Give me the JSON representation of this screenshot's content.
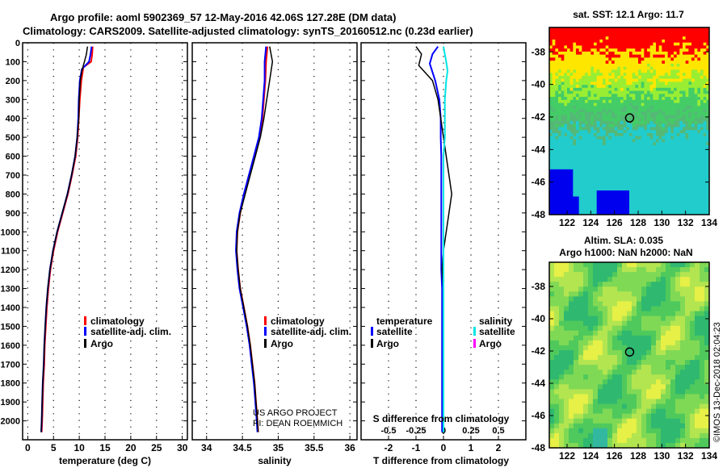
{
  "title_line1": "Argo profile: aoml 5902369_57 12-May-2016 42.06S 127.28E (DM data)",
  "title_line2": "Climatology: CARS2009. Satellite-adjusted climatology: synTS_20160512.nc (0.23d earlier)",
  "colors": {
    "climatology": "#ff0000",
    "satellite": "#0000ff",
    "argo": "#000000",
    "satellite_salinity": "#00e5e5",
    "argo_salinity": "#ff00ff"
  },
  "legend": {
    "climatology": "climatology",
    "satellite_adj": "satellite-adj. clim.",
    "argo": "Argo",
    "temperature": "temperature",
    "salinity": "salinity",
    "satellite": "satellite"
  },
  "credit": {
    "line1": "US ARGO PROJECT",
    "line2": "PI: DEAN ROEMMICH"
  },
  "watermark": "©IMOS 13-Dec-2018 02:04:23",
  "chart_data": [
    {
      "type": "line",
      "name": "temperature-profile",
      "xlabel": "temperature (deg C)",
      "ylabel": "depth (m)",
      "xlim": [
        -1,
        31
      ],
      "ylim": [
        2100,
        0
      ],
      "xticks": [
        0,
        5,
        10,
        15,
        20,
        25,
        30
      ],
      "yticks": [
        0,
        100,
        200,
        300,
        400,
        500,
        600,
        700,
        800,
        900,
        1000,
        1100,
        1200,
        1300,
        1400,
        1500,
        1600,
        1700,
        1800,
        1900,
        2000
      ],
      "series": [
        {
          "name": "climatology",
          "color": "#ff0000",
          "width": 2,
          "points": [
            [
              12.6,
              20
            ],
            [
              12.5,
              60
            ],
            [
              12.3,
              100
            ],
            [
              10.8,
              130
            ],
            [
              10.4,
              200
            ],
            [
              10.1,
              300
            ],
            [
              9.9,
              400
            ],
            [
              9.7,
              500
            ],
            [
              9.3,
              600
            ],
            [
              8.6,
              700
            ],
            [
              7.8,
              800
            ],
            [
              6.8,
              900
            ],
            [
              5.8,
              1000
            ],
            [
              5.0,
              1100
            ],
            [
              4.4,
              1200
            ],
            [
              4.0,
              1300
            ],
            [
              3.7,
              1400
            ],
            [
              3.5,
              1500
            ],
            [
              3.3,
              1600
            ],
            [
              3.2,
              1700
            ],
            [
              3.0,
              1800
            ],
            [
              2.9,
              1900
            ],
            [
              2.8,
              2000
            ],
            [
              2.7,
              2060
            ]
          ]
        },
        {
          "name": "satellite-adj. clim.",
          "color": "#0000ff",
          "width": 2,
          "points": [
            [
              12.4,
              20
            ],
            [
              12.2,
              60
            ],
            [
              11.9,
              100
            ],
            [
              10.5,
              140
            ],
            [
              10.1,
              200
            ],
            [
              9.9,
              300
            ],
            [
              9.8,
              400
            ],
            [
              9.6,
              500
            ],
            [
              9.2,
              600
            ],
            [
              8.5,
              700
            ],
            [
              7.7,
              800
            ],
            [
              6.7,
              900
            ],
            [
              5.7,
              1000
            ],
            [
              4.9,
              1100
            ],
            [
              4.3,
              1200
            ],
            [
              3.9,
              1300
            ],
            [
              3.6,
              1400
            ],
            [
              3.4,
              1500
            ],
            [
              3.2,
              1600
            ],
            [
              3.1,
              1700
            ],
            [
              2.9,
              1800
            ],
            [
              2.8,
              1900
            ],
            [
              2.7,
              2000
            ],
            [
              2.6,
              2060
            ]
          ]
        },
        {
          "name": "Argo",
          "color": "#000000",
          "width": 1.5,
          "points": [
            [
              11.6,
              20
            ],
            [
              11.4,
              60
            ],
            [
              11.0,
              100
            ],
            [
              10.5,
              150
            ],
            [
              10.2,
              200
            ],
            [
              10.0,
              300
            ],
            [
              9.9,
              400
            ],
            [
              9.6,
              500
            ],
            [
              9.2,
              600
            ],
            [
              8.5,
              700
            ],
            [
              7.7,
              800
            ],
            [
              6.7,
              900
            ],
            [
              5.7,
              1000
            ],
            [
              4.9,
              1100
            ],
            [
              4.3,
              1200
            ],
            [
              3.9,
              1300
            ],
            [
              3.6,
              1400
            ],
            [
              3.4,
              1500
            ],
            [
              3.2,
              1600
            ],
            [
              3.1,
              1700
            ],
            [
              2.9,
              1800
            ],
            [
              2.8,
              1900
            ],
            [
              2.7,
              2000
            ],
            [
              2.6,
              2060
            ]
          ]
        }
      ]
    },
    {
      "type": "line",
      "name": "salinity-profile",
      "xlabel": "salinity",
      "ylabel": "depth (m)",
      "xlim": [
        33.8,
        36.1
      ],
      "ylim": [
        2100,
        0
      ],
      "xticks": [
        34,
        34.5,
        35,
        35.5,
        36
      ],
      "series": [
        {
          "name": "climatology",
          "color": "#ff0000",
          "width": 2,
          "points": [
            [
              34.85,
              20
            ],
            [
              34.83,
              100
            ],
            [
              34.82,
              200
            ],
            [
              34.8,
              300
            ],
            [
              34.78,
              400
            ],
            [
              34.74,
              500
            ],
            [
              34.67,
              600
            ],
            [
              34.6,
              700
            ],
            [
              34.53,
              800
            ],
            [
              34.47,
              900
            ],
            [
              34.43,
              1000
            ],
            [
              34.42,
              1100
            ],
            [
              34.44,
              1200
            ],
            [
              34.47,
              1300
            ],
            [
              34.52,
              1400
            ],
            [
              34.57,
              1500
            ],
            [
              34.61,
              1600
            ],
            [
              34.64,
              1700
            ],
            [
              34.67,
              1800
            ],
            [
              34.69,
              1900
            ],
            [
              34.71,
              2000
            ],
            [
              34.72,
              2060
            ]
          ]
        },
        {
          "name": "satellite-adj. clim.",
          "color": "#0000ff",
          "width": 2,
          "points": [
            [
              34.83,
              20
            ],
            [
              34.81,
              100
            ],
            [
              34.81,
              200
            ],
            [
              34.79,
              300
            ],
            [
              34.77,
              400
            ],
            [
              34.73,
              500
            ],
            [
              34.66,
              600
            ],
            [
              34.59,
              700
            ],
            [
              34.52,
              800
            ],
            [
              34.46,
              900
            ],
            [
              34.42,
              1000
            ],
            [
              34.41,
              1100
            ],
            [
              34.43,
              1200
            ],
            [
              34.46,
              1300
            ],
            [
              34.51,
              1400
            ],
            [
              34.56,
              1500
            ],
            [
              34.6,
              1600
            ],
            [
              34.63,
              1700
            ],
            [
              34.66,
              1800
            ],
            [
              34.68,
              1900
            ],
            [
              34.7,
              2000
            ],
            [
              34.71,
              2060
            ]
          ]
        },
        {
          "name": "Argo",
          "color": "#000000",
          "width": 1.5,
          "points": [
            [
              34.88,
              20
            ],
            [
              34.92,
              100
            ],
            [
              34.88,
              200
            ],
            [
              34.84,
              300
            ],
            [
              34.8,
              400
            ],
            [
              34.75,
              500
            ],
            [
              34.68,
              600
            ],
            [
              34.61,
              700
            ],
            [
              34.54,
              800
            ],
            [
              34.47,
              900
            ],
            [
              34.43,
              1000
            ],
            [
              34.42,
              1100
            ],
            [
              34.44,
              1200
            ],
            [
              34.47,
              1300
            ],
            [
              34.52,
              1400
            ],
            [
              34.57,
              1500
            ],
            [
              34.61,
              1600
            ],
            [
              34.64,
              1700
            ],
            [
              34.67,
              1800
            ],
            [
              34.69,
              1900
            ],
            [
              34.71,
              2000
            ],
            [
              34.72,
              2060
            ]
          ]
        }
      ]
    },
    {
      "type": "line",
      "name": "difference-profile",
      "xlabel": "T difference from climatology",
      "xlabel_top": "S difference from climatology",
      "xlim": [
        -3,
        3
      ],
      "ylim": [
        2100,
        0
      ],
      "xticks": [
        -2,
        -1,
        0,
        1,
        2
      ],
      "xtick_labels_top": [
        "-0.5",
        "-0.25",
        "0",
        "0.25",
        "0.5"
      ],
      "series": [
        {
          "name": "temperature satellite",
          "color": "#0000ff",
          "width": 2,
          "points": [
            [
              -0.2,
              20
            ],
            [
              -0.4,
              60
            ],
            [
              -0.5,
              110
            ],
            [
              -0.3,
              200
            ],
            [
              -0.15,
              300
            ],
            [
              -0.1,
              400
            ],
            [
              -0.1,
              500
            ],
            [
              -0.08,
              600
            ],
            [
              -0.08,
              700
            ],
            [
              -0.08,
              800
            ],
            [
              -0.08,
              900
            ],
            [
              -0.08,
              1000
            ],
            [
              -0.08,
              1100
            ],
            [
              -0.08,
              1200
            ],
            [
              -0.05,
              1300
            ],
            [
              -0.05,
              1400
            ],
            [
              -0.05,
              1500
            ],
            [
              -0.05,
              1600
            ],
            [
              -0.05,
              1700
            ],
            [
              -0.05,
              1800
            ],
            [
              -0.05,
              1900
            ],
            [
              -0.05,
              2000
            ],
            [
              -0.05,
              2060
            ]
          ]
        },
        {
          "name": "temperature Argo",
          "color": "#000000",
          "width": 1.5,
          "points": [
            [
              -1.0,
              20
            ],
            [
              -0.8,
              60
            ],
            [
              -0.9,
              120
            ],
            [
              -0.4,
              200
            ],
            [
              -0.2,
              300
            ],
            [
              -0.1,
              400
            ],
            [
              0.0,
              500
            ],
            [
              0.1,
              600
            ],
            [
              0.2,
              700
            ],
            [
              0.3,
              800
            ],
            [
              0.2,
              900
            ],
            [
              0.1,
              1000
            ],
            [
              0.0,
              1100
            ],
            [
              -0.05,
              1200
            ],
            [
              0.0,
              1300
            ],
            [
              0.0,
              1400
            ],
            [
              0.0,
              1500
            ],
            [
              0.0,
              1600
            ],
            [
              0.0,
              1700
            ],
            [
              0.0,
              1800
            ],
            [
              0.0,
              1900
            ],
            [
              0.0,
              2000
            ],
            [
              0.0,
              2060
            ]
          ]
        },
        {
          "name": "salinity satellite",
          "color": "#00e5e5",
          "width": 2,
          "points": [
            [
              0.0,
              20
            ],
            [
              0.1,
              100
            ],
            [
              0.15,
              150
            ],
            [
              0.1,
              200
            ],
            [
              0.05,
              300
            ],
            [
              0.05,
              400
            ],
            [
              0.05,
              500
            ],
            [
              0.0,
              600
            ],
            [
              0.0,
              700
            ],
            [
              0.0,
              800
            ],
            [
              0.0,
              900
            ],
            [
              0.0,
              1000
            ],
            [
              0.0,
              1100
            ],
            [
              0.0,
              1200
            ],
            [
              0.0,
              1300
            ],
            [
              0.0,
              1400
            ],
            [
              0.0,
              1500
            ],
            [
              0.0,
              1600
            ],
            [
              0.0,
              1700
            ],
            [
              0.0,
              1800
            ],
            [
              0.0,
              1900
            ],
            [
              0.0,
              2000
            ],
            [
              0.0,
              2060
            ]
          ]
        },
        {
          "name": "salinity Argo",
          "color": "#ff00ff",
          "width": 1.5,
          "points": []
        }
      ]
    },
    {
      "type": "heatmap",
      "name": "sst-map",
      "title": "sat. SST: 12.1 Argo: 11.7",
      "xlim": [
        120.5,
        134
      ],
      "ylim": [
        -48,
        -36.5
      ],
      "xticks": [
        122,
        124,
        126,
        128,
        130,
        132,
        134
      ],
      "yticks": [
        -38,
        -40,
        -42,
        -44,
        -46,
        -48
      ],
      "marker": {
        "lon": 127.28,
        "lat": -42.06
      }
    },
    {
      "type": "heatmap",
      "name": "sla-map",
      "title_line1": "Altim. SLA: 0.035",
      "title_line2": "Argo h1000: NaN h2000: NaN",
      "xlim": [
        120.5,
        134
      ],
      "ylim": [
        -48,
        -36.5
      ],
      "xticks": [
        122,
        124,
        126,
        128,
        130,
        132,
        134
      ],
      "yticks": [
        -38,
        -40,
        -42,
        -44,
        -46,
        -48
      ],
      "marker": {
        "lon": 127.28,
        "lat": -42.06
      }
    }
  ]
}
